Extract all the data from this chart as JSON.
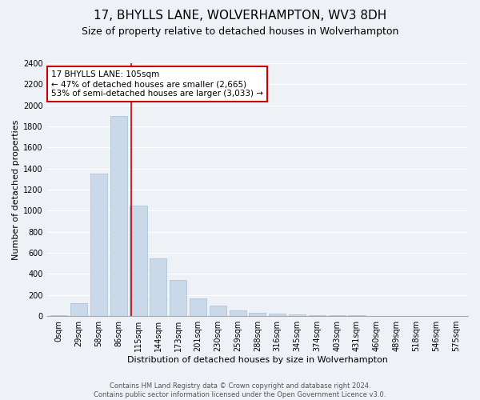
{
  "title": "17, BHYLLS LANE, WOLVERHAMPTON, WV3 8DH",
  "subtitle": "Size of property relative to detached houses in Wolverhampton",
  "xlabel": "Distribution of detached houses by size in Wolverhampton",
  "ylabel": "Number of detached properties",
  "footer1": "Contains HM Land Registry data © Crown copyright and database right 2024.",
  "footer2": "Contains public sector information licensed under the Open Government Licence v3.0.",
  "annotation_title": "17 BHYLLS LANE: 105sqm",
  "annotation_line1": "← 47% of detached houses are smaller (2,665)",
  "annotation_line2": "53% of semi-detached houses are larger (3,033) →",
  "bar_color": "#c9d9ea",
  "bar_edge_color": "#a8becc",
  "vline_color": "#cc0000",
  "vline_x": 3.62,
  "categories": [
    "0sqm",
    "29sqm",
    "58sqm",
    "86sqm",
    "115sqm",
    "144sqm",
    "173sqm",
    "201sqm",
    "230sqm",
    "259sqm",
    "288sqm",
    "316sqm",
    "345sqm",
    "374sqm",
    "403sqm",
    "431sqm",
    "460sqm",
    "489sqm",
    "518sqm",
    "546sqm",
    "575sqm"
  ],
  "values": [
    5,
    120,
    1350,
    1900,
    1050,
    550,
    340,
    170,
    100,
    50,
    30,
    20,
    15,
    10,
    8,
    5,
    3,
    1,
    0,
    1,
    0
  ],
  "ylim": [
    0,
    2400
  ],
  "yticks": [
    0,
    200,
    400,
    600,
    800,
    1000,
    1200,
    1400,
    1600,
    1800,
    2000,
    2200,
    2400
  ],
  "background_color": "#eef2f7",
  "plot_bg_color": "#eef2f7",
  "grid_color": "#ffffff",
  "title_fontsize": 11,
  "subtitle_fontsize": 9,
  "xlabel_fontsize": 8,
  "ylabel_fontsize": 8,
  "tick_fontsize": 7,
  "annotation_fontsize": 7.5,
  "footer_fontsize": 6,
  "annotation_box_color": "#ffffff",
  "annotation_box_edge": "#cc0000"
}
